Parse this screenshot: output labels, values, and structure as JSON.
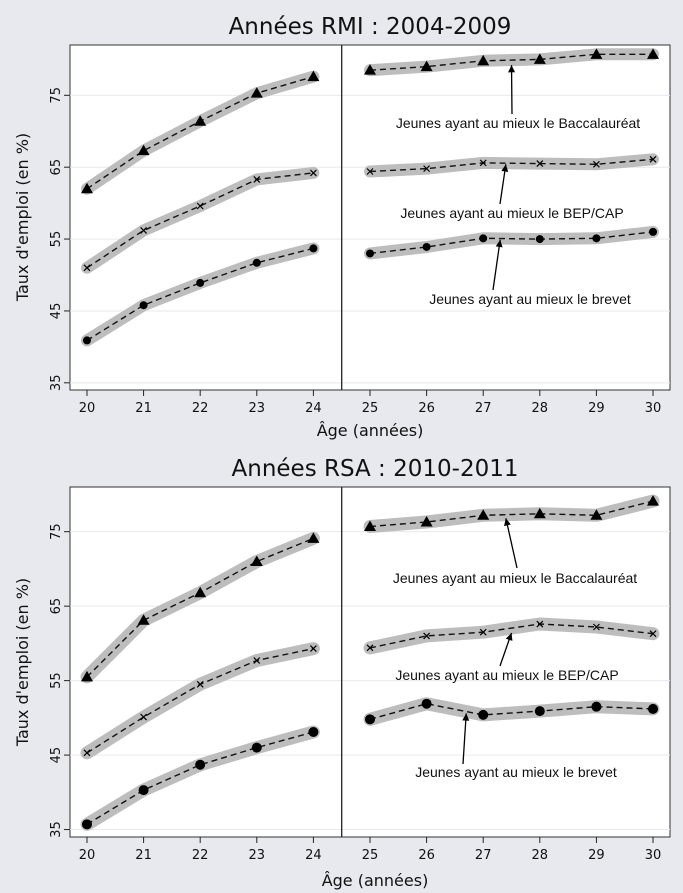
{
  "chart_data": [
    {
      "type": "line",
      "title": "Années RMI : 2004-2009",
      "xlabel": "Âge (années)",
      "ylabel": "Taux d'emploi (en %)",
      "x": [
        20,
        21,
        22,
        23,
        24,
        25,
        26,
        27,
        28,
        29,
        30
      ],
      "xlim": [
        19.7,
        30.3
      ],
      "ylim": [
        34,
        82
      ],
      "yticks": [
        35,
        45,
        55,
        65,
        75
      ],
      "discontinuity_x": 24.5,
      "grid": true,
      "series": [
        {
          "marker": "triangle",
          "values": [
            62,
            67.3,
            71.4,
            75.3,
            77.6,
            78.5,
            79,
            79.8,
            80,
            80.7,
            80.7
          ]
        },
        {
          "marker": "x",
          "values": [
            51,
            56.2,
            59.6,
            63.3,
            64.2,
            64.4,
            64.8,
            65.6,
            65.5,
            65.4,
            66.1
          ]
        },
        {
          "marker": "dot",
          "values": [
            40.9,
            45.8,
            48.9,
            51.7,
            53.7,
            53,
            53.9,
            55.1,
            55,
            55.1,
            56
          ]
        }
      ],
      "annotations": [
        {
          "text": "Jeunes ayant au mieux le Baccalauréat",
          "arrow_to": {
            "x": 27.5,
            "y": 79.2
          }
        },
        {
          "text": "Jeunes ayant au mieux le BEP/CAP",
          "arrow_to": {
            "x": 27.4,
            "y": 65.4
          }
        },
        {
          "text": "Jeunes ayant au mieux le brevet",
          "arrow_to": {
            "x": 27.3,
            "y": 54.9
          }
        }
      ]
    },
    {
      "type": "line",
      "title": "Années RSA : 2010-2011",
      "xlabel": "Âge (années)",
      "ylabel": "Taux d'emploi (en %)",
      "x": [
        20,
        21,
        22,
        23,
        24,
        25,
        26,
        27,
        28,
        29,
        30
      ],
      "xlim": [
        19.7,
        30.3
      ],
      "ylim": [
        34,
        81
      ],
      "yticks": [
        35,
        45,
        55,
        65,
        75
      ],
      "discontinuity_x": 24.5,
      "grid": true,
      "series": [
        {
          "marker": "triangle",
          "values": [
            55.5,
            63.1,
            66.8,
            71,
            74.1,
            75.7,
            76.3,
            77.2,
            77.4,
            77.2,
            79.1
          ]
        },
        {
          "marker": "x",
          "values": [
            45.3,
            50.1,
            54.5,
            57.7,
            59.3,
            59.4,
            61,
            61.5,
            62.6,
            62.2,
            61.3
          ]
        },
        {
          "marker": "dot",
          "values": [
            35.7,
            40.3,
            43.7,
            46,
            48.1,
            49.8,
            51.9,
            50.4,
            50.9,
            51.5,
            51.2
          ]
        }
      ],
      "annotations": [
        {
          "text": "Jeunes ayant au mieux le Baccalauréat",
          "arrow_to": {
            "x": 27.4,
            "y": 76.8
          }
        },
        {
          "text": "Jeunes ayant au mieux le BEP/CAP",
          "arrow_to": {
            "x": 27.5,
            "y": 61.4
          }
        },
        {
          "text": "Jeunes ayant au mieux le brevet",
          "arrow_to": {
            "x": 26.7,
            "y": 50.6
          }
        }
      ]
    }
  ]
}
